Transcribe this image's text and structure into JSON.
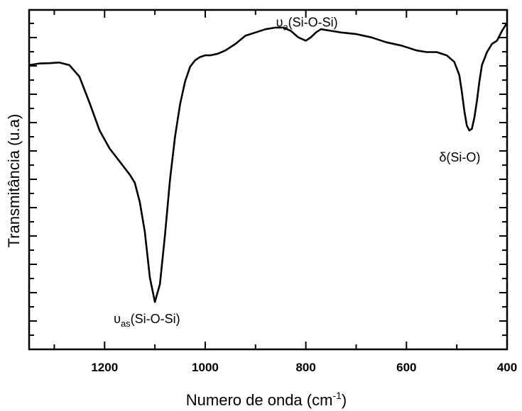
{
  "chart_data": {
    "type": "line",
    "xlabel": "Numero de onda (cm",
    "xlabel_superscript": "-1",
    "xlabel_suffix": ")",
    "ylabel": "Transmitância (u.a)",
    "xlim": [
      1350,
      400
    ],
    "ylim": [
      0,
      1
    ],
    "x_ticks": [
      1200,
      1000,
      800,
      600,
      400
    ],
    "y_tick_labels_shown": false,
    "grid": false,
    "legend": "none",
    "series": [
      {
        "color": "#000000",
        "x": [
          1350,
          1330,
          1310,
          1290,
          1270,
          1250,
          1230,
          1210,
          1190,
          1170,
          1150,
          1140,
          1130,
          1120,
          1110,
          1100,
          1090,
          1080,
          1070,
          1060,
          1050,
          1040,
          1030,
          1020,
          1010,
          1000,
          990,
          975,
          960,
          940,
          920,
          900,
          880,
          860,
          845,
          830,
          815,
          800,
          790,
          780,
          770,
          750,
          730,
          700,
          670,
          640,
          610,
          580,
          560,
          540,
          520,
          505,
          495,
          490,
          485,
          480,
          475,
          470,
          465,
          460,
          455,
          450,
          440,
          430,
          420,
          410,
          400
        ],
        "y": [
          0.87,
          0.875,
          0.876,
          0.878,
          0.87,
          0.835,
          0.755,
          0.67,
          0.615,
          0.575,
          0.535,
          0.51,
          0.45,
          0.36,
          0.22,
          0.145,
          0.2,
          0.35,
          0.52,
          0.65,
          0.75,
          0.82,
          0.865,
          0.885,
          0.895,
          0.9,
          0.9,
          0.905,
          0.915,
          0.935,
          0.96,
          0.97,
          0.98,
          0.985,
          0.985,
          0.975,
          0.955,
          0.945,
          0.955,
          0.97,
          0.98,
          0.975,
          0.97,
          0.965,
          0.955,
          0.94,
          0.93,
          0.915,
          0.91,
          0.91,
          0.9,
          0.88,
          0.84,
          0.79,
          0.73,
          0.685,
          0.67,
          0.675,
          0.71,
          0.76,
          0.82,
          0.87,
          0.91,
          0.935,
          0.945,
          0.975,
          1.0
        ]
      }
    ],
    "annotations": [
      {
        "symbol": "υ",
        "subscript": "as",
        "text": "(Si-O-Si)",
        "x": 1100,
        "y": 0.145
      },
      {
        "symbol": "υ",
        "subscript": "a",
        "text": "(Si-O-Si)",
        "x": 800,
        "y": 0.945
      },
      {
        "symbol": "δ",
        "subscript": "",
        "text": "(Si-O)",
        "x": 470,
        "y": 0.67
      }
    ]
  }
}
